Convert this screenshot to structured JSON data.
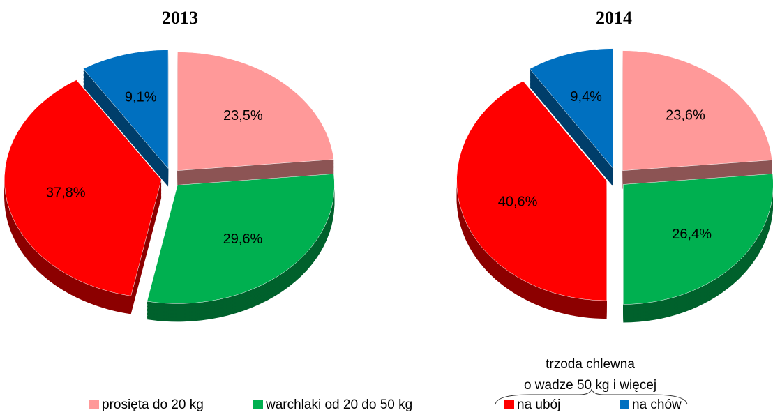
{
  "chart_data": [
    {
      "type": "pie",
      "title": "2013",
      "categories": [
        "prosięta do 20 kg",
        "warchlaki od 20 do 50 kg",
        "na ubój",
        "na chów"
      ],
      "values": [
        23.5,
        29.6,
        37.8,
        9.1
      ],
      "value_labels": [
        "23,5%",
        "29,6%",
        "37,8%",
        "9,1%"
      ],
      "colors": [
        "#ff9999",
        "#00b050",
        "#ff0000",
        "#0070c0"
      ]
    },
    {
      "type": "pie",
      "title": "2014",
      "categories": [
        "prosięta do 20 kg",
        "warchlaki od 20 do 50 kg",
        "na ubój",
        "na chów"
      ],
      "values": [
        23.6,
        26.4,
        40.6,
        9.4
      ],
      "value_labels": [
        "23,6%",
        "26,4%",
        "40,6%",
        "9,4%"
      ],
      "colors": [
        "#ff9999",
        "#00b050",
        "#ff0000",
        "#0070c0"
      ],
      "annotation": [
        "trzoda chlewna",
        "o wadze 50 kg i więcej"
      ]
    }
  ]
}
